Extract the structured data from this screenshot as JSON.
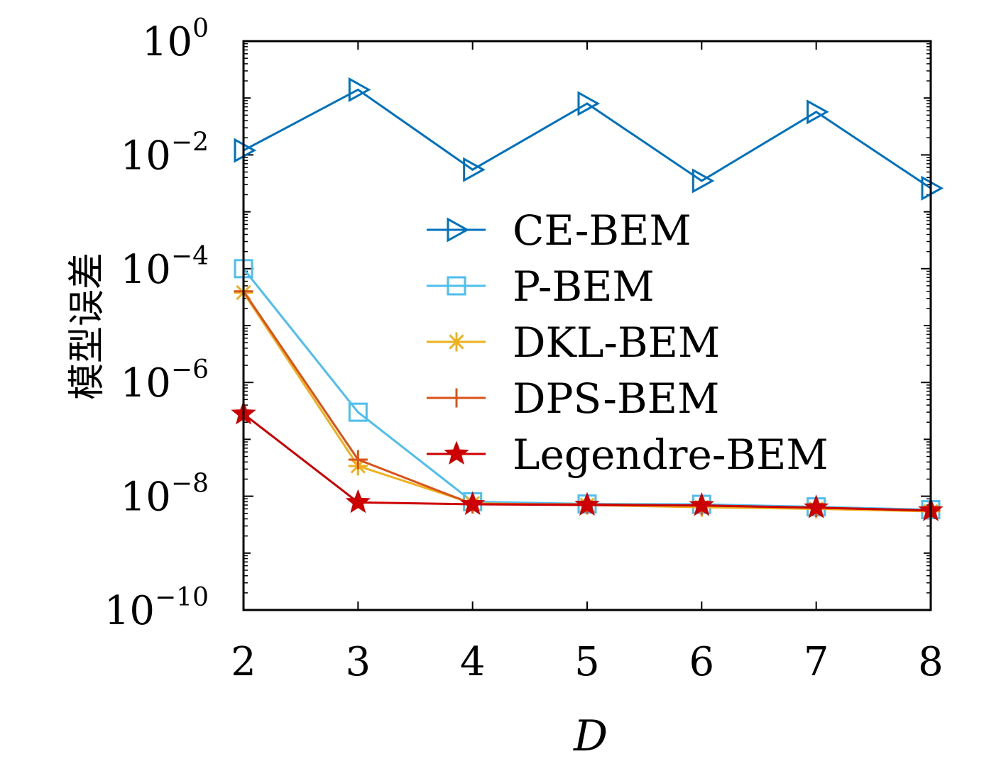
{
  "chart_data": {
    "type": "line",
    "title": "",
    "xlabel": "D",
    "ylabel": "模型误差",
    "yscale": "log",
    "xlim": [
      2,
      8
    ],
    "ylim": [
      1e-10,
      1
    ],
    "x": [
      2,
      3,
      4,
      5,
      6,
      7,
      8
    ],
    "x_tick_labels": [
      "2",
      "3",
      "4",
      "5",
      "6",
      "7",
      "8"
    ],
    "y_ticks": [
      {
        "exp": -10,
        "base": "10",
        "power": "−10"
      },
      {
        "exp": -8,
        "base": "10",
        "power": "−8"
      },
      {
        "exp": -6,
        "base": "10",
        "power": "−6"
      },
      {
        "exp": -4,
        "base": "10",
        "power": "−4"
      },
      {
        "exp": -2,
        "base": "10",
        "power": "−2"
      },
      {
        "exp": 0,
        "base": "10",
        "power": "0"
      }
    ],
    "legend_position": "center-right",
    "series": [
      {
        "name": "CE-BEM",
        "color": "#0072BD",
        "marker": "triangle-right",
        "values": [
          0.012,
          0.14,
          0.0055,
          0.08,
          0.0035,
          0.057,
          0.0026
        ]
      },
      {
        "name": "P-BEM",
        "color": "#4DBEEE",
        "marker": "square",
        "values": [
          0.0001,
          3e-07,
          8e-09,
          7.3e-09,
          7.2e-09,
          6.5e-09,
          5.8e-09
        ]
      },
      {
        "name": "DKL-BEM",
        "color": "#EDB120",
        "marker": "asterisk",
        "values": [
          3.8e-05,
          3.4e-08,
          7.5e-09,
          7e-09,
          6.4e-09,
          6e-09,
          5.4e-09
        ]
      },
      {
        "name": "DPS-BEM",
        "color": "#D95319",
        "marker": "plus",
        "values": [
          4e-05,
          4.4e-08,
          7.3e-09,
          7.2e-09,
          6.8e-09,
          6.3e-09,
          5.6e-09
        ]
      },
      {
        "name": "Legendre-BEM",
        "color": "#CC0000",
        "marker": "star",
        "values": [
          2.8e-07,
          7.8e-09,
          7.2e-09,
          7e-09,
          6.9e-09,
          6.3e-09,
          5.6e-09
        ]
      }
    ]
  }
}
